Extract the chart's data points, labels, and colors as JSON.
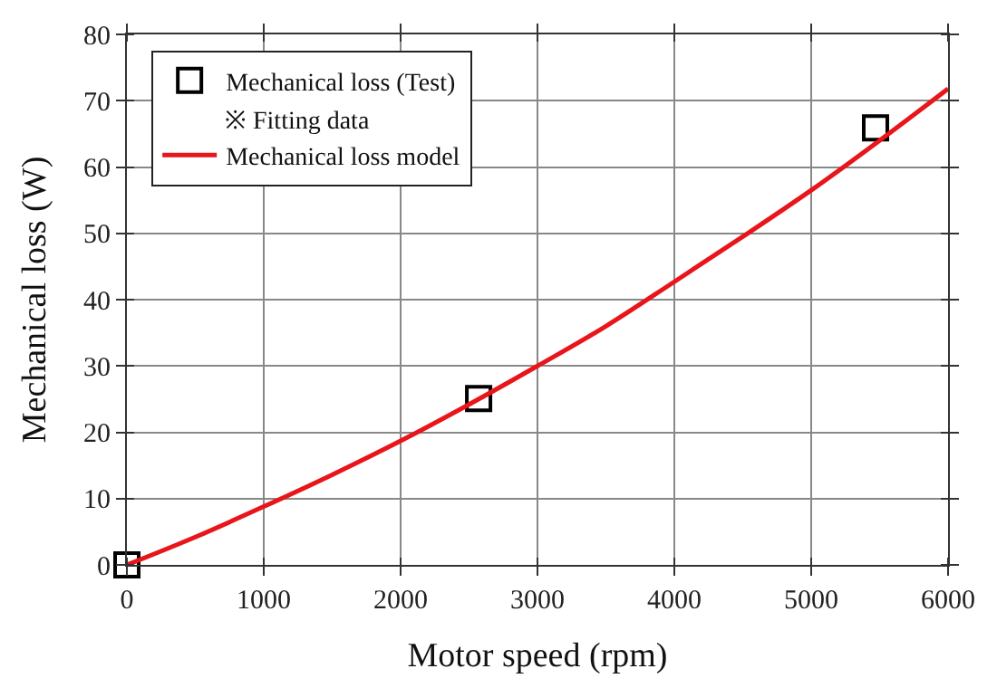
{
  "chart_data": {
    "type": "line",
    "xlabel": "Motor speed (rpm)",
    "ylabel": "Mechanical loss (W)",
    "xlim": [
      0,
      6000
    ],
    "xticks": [
      0,
      1000,
      2000,
      3000,
      4000,
      5000,
      6000
    ],
    "ylim": [
      0,
      80
    ],
    "yticks": [
      0,
      10,
      20,
      30,
      40,
      50,
      60,
      70,
      80
    ],
    "grid": true,
    "legend": "top left",
    "annotations": [
      "※ Fitting data"
    ],
    "series": [
      {
        "name": "Mechanical loss (Test)",
        "type": "scatter",
        "marker": "square",
        "color": "#000000",
        "x": [
          0,
          2570,
          5470
        ],
        "values": [
          0,
          25.1,
          65.9
        ]
      },
      {
        "name": "Mechanical loss model",
        "color": "#e8151b",
        "x": [
          0,
          500,
          1000,
          1500,
          2000,
          2500,
          3000,
          3500,
          4000,
          4500,
          5000,
          5500,
          6000
        ],
        "values": [
          0,
          4.2,
          8.8,
          13.6,
          18.7,
          24.2,
          30,
          36,
          42.7,
          49.5,
          56.5,
          64,
          71.8
        ]
      }
    ]
  }
}
